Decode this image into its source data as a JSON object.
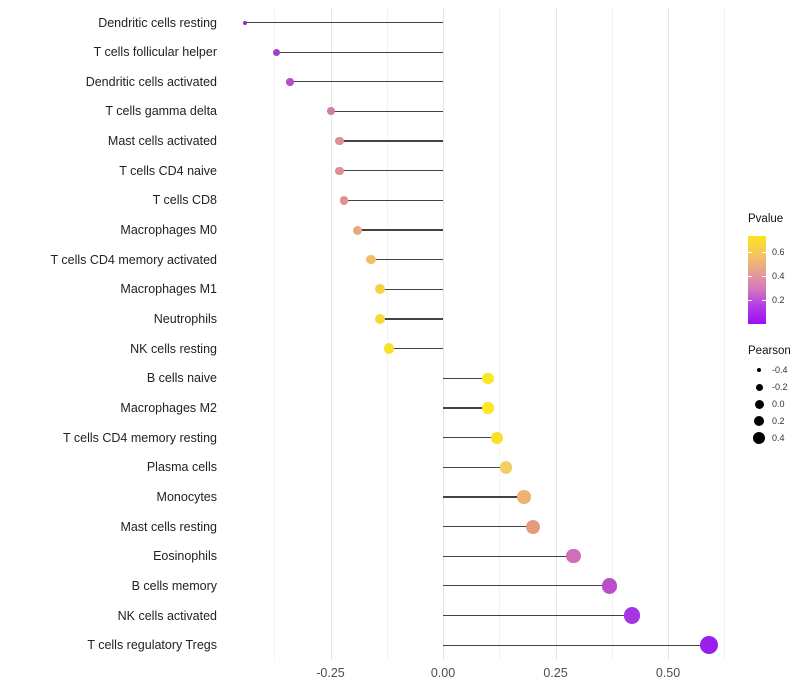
{
  "chart_data": {
    "type": "scatter",
    "variant": "lollipop",
    "orientation": "horizontal",
    "title": "",
    "xlabel": "",
    "ylabel": "",
    "xlim": [
      -0.495,
      0.64
    ],
    "grid": true,
    "x_axis": {
      "major_ticks": [
        -0.25,
        0.0,
        0.25,
        0.5
      ],
      "major_tick_labels": [
        "-0.25",
        "0.00",
        "0.25",
        "0.50"
      ],
      "minor_ticks": [
        -0.375,
        -0.125,
        0.125,
        0.375,
        0.625
      ]
    },
    "points": [
      {
        "label": "Dendritic cells resting",
        "pearson": -0.44,
        "dot_color": "#8a2bc9",
        "dot_size": 4
      },
      {
        "label": "T cells follicular helper",
        "pearson": -0.37,
        "dot_color": "#a23fca",
        "dot_size": 7
      },
      {
        "label": "Dendritic cells activated",
        "pearson": -0.34,
        "dot_color": "#b152c7",
        "dot_size": 7.5
      },
      {
        "label": "T cells gamma delta",
        "pearson": -0.25,
        "dot_color": "#cd7da6",
        "dot_size": 8
      },
      {
        "label": "Mast cells activated",
        "pearson": -0.23,
        "dot_color": "#df8f92",
        "dot_size": 8.5
      },
      {
        "label": "T cells CD4 naive",
        "pearson": -0.23,
        "dot_color": "#df8f92",
        "dot_size": 8.5
      },
      {
        "label": "T cells CD8",
        "pearson": -0.22,
        "dot_color": "#e0918e",
        "dot_size": 8.5
      },
      {
        "label": "Macrophages M0",
        "pearson": -0.19,
        "dot_color": "#e9a87e",
        "dot_size": 9
      },
      {
        "label": "T cells CD4 memory activated",
        "pearson": -0.16,
        "dot_color": "#f0bf63",
        "dot_size": 9.5
      },
      {
        "label": "Macrophages M1",
        "pearson": -0.14,
        "dot_color": "#f5d242",
        "dot_size": 10
      },
      {
        "label": "Neutrophils",
        "pearson": -0.14,
        "dot_color": "#f6d838",
        "dot_size": 10
      },
      {
        "label": "NK cells resting",
        "pearson": -0.12,
        "dot_color": "#f8e12b",
        "dot_size": 10.5
      },
      {
        "label": "B cells naive",
        "pearson": 0.1,
        "dot_color": "#f9e723",
        "dot_size": 11.5
      },
      {
        "label": "Macrophages M2",
        "pearson": 0.1,
        "dot_color": "#f9e723",
        "dot_size": 11.5
      },
      {
        "label": "T cells CD4 memory resting",
        "pearson": 0.12,
        "dot_color": "#f8e02a",
        "dot_size": 12
      },
      {
        "label": "Plasma cells",
        "pearson": 0.14,
        "dot_color": "#f3cf63",
        "dot_size": 12.5
      },
      {
        "label": "Monocytes",
        "pearson": 0.18,
        "dot_color": "#eeb273",
        "dot_size": 13.5
      },
      {
        "label": "Mast cells resting",
        "pearson": 0.2,
        "dot_color": "#e59a7c",
        "dot_size": 14
      },
      {
        "label": "Eosinophils",
        "pearson": 0.29,
        "dot_color": "#cf6fb5",
        "dot_size": 14.5
      },
      {
        "label": "B cells memory",
        "pearson": 0.37,
        "dot_color": "#bb4fc9",
        "dot_size": 15.5
      },
      {
        "label": "NK cells activated",
        "pearson": 0.42,
        "dot_color": "#a636e3",
        "dot_size": 16.5
      },
      {
        "label": "T cells regulatory  Tregs",
        "pearson": 0.59,
        "dot_color": "#9a1fec",
        "dot_size": 18
      }
    ],
    "legend_pvalue": {
      "title": "Pvalue",
      "tick_labels": [
        "0.6",
        "0.4",
        "0.2"
      ],
      "gradient_top_to_bottom": [
        "#fbe423",
        "#f6c75b",
        "#e7a090",
        "#d578be",
        "#b23be9",
        "#9a0ff2"
      ],
      "position": "right"
    },
    "legend_pearson": {
      "title": "Pearson",
      "items": [
        {
          "label": "-0.4",
          "dot_size": 4.5
        },
        {
          "label": "-0.2",
          "dot_size": 7
        },
        {
          "label": "0.0",
          "dot_size": 9
        },
        {
          "label": "0.2",
          "dot_size": 10.5
        },
        {
          "label": "0.4",
          "dot_size": 12
        }
      ],
      "dot_color": "#000000",
      "position": "right"
    },
    "stem_color": "#434343",
    "background_color": "#ffffff"
  }
}
